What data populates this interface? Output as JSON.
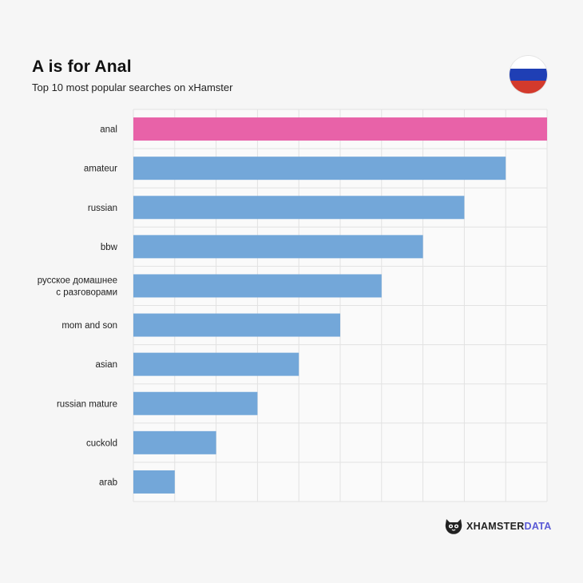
{
  "header": {
    "title": "A is for Anal",
    "subtitle": "Top 10 most popular searches on xHamster"
  },
  "flag": {
    "name": "russia-flag-icon",
    "stripes": [
      "#ffffff",
      "#1f3fb5",
      "#d33a2c"
    ]
  },
  "brand": {
    "logo_icon": "hamster-logo-icon",
    "name_part1": "XHAMSTER",
    "name_part2": "DATA"
  },
  "colors": {
    "highlight": "#e862a8",
    "bar": "#73a7d9",
    "grid": "#e2e2e2",
    "label": "#222222"
  },
  "chart_data": {
    "type": "bar",
    "orientation": "horizontal",
    "categories": [
      "anal",
      "amateur",
      "russian",
      "bbw",
      "русское домашнее с разговорами",
      "mom and son",
      "asian",
      "russian mature",
      "cuckold",
      "arab"
    ],
    "category_lines": [
      [
        "anal"
      ],
      [
        "amateur"
      ],
      [
        "russian"
      ],
      [
        "bbw"
      ],
      [
        "русское домашнее",
        "с разговорами"
      ],
      [
        "mom and son"
      ],
      [
        "asian"
      ],
      [
        "russian mature"
      ],
      [
        "cuckold"
      ],
      [
        "arab"
      ]
    ],
    "values": [
      10,
      9,
      8,
      7,
      6,
      5,
      4,
      3,
      2,
      1
    ],
    "highlight_index": 0,
    "xlim": [
      0,
      10
    ],
    "grid": true,
    "legend": false,
    "title": "A is for Anal",
    "subtitle": "Top 10 most popular searches on xHamster"
  }
}
